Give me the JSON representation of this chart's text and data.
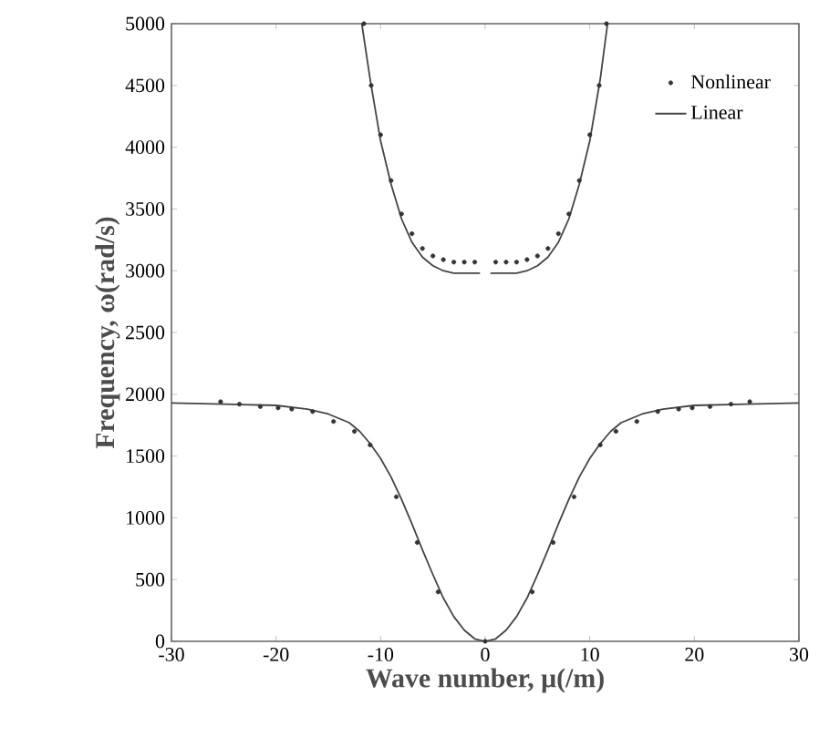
{
  "chart_data": {
    "type": "line",
    "xlabel": "Wave number, μ(/m)",
    "ylabel": "Frequency, ω(rad/s)",
    "xlim": [
      -30,
      30
    ],
    "ylim": [
      0,
      5000
    ],
    "xticks": [
      -30,
      -20,
      -10,
      0,
      10,
      20,
      30
    ],
    "yticks": [
      0,
      500,
      1000,
      1500,
      2000,
      2500,
      3000,
      3500,
      4000,
      4500,
      5000
    ],
    "grid": false,
    "legend": "top right",
    "series": [
      {
        "name": "Nonlinear",
        "type": "scatter",
        "marker": "circle",
        "color": "#333333",
        "x": [
          -25.3,
          -23.5,
          -21.5,
          -19.8,
          -18.5,
          -16.5,
          -14.5,
          -12.5,
          -11,
          -8.5,
          -6.5,
          -4.5,
          0,
          4.5,
          6.5,
          8.5,
          11,
          12.5,
          14.5,
          16.5,
          18.5,
          19.8,
          21.5,
          23.5,
          25.3,
          -11.6,
          -10.9,
          -10,
          -9,
          -8,
          -7,
          -6,
          -5,
          -4,
          -3,
          -2,
          -1,
          1,
          2,
          3,
          4,
          5,
          6,
          7,
          8,
          9,
          10,
          10.9,
          11.6
        ],
        "values": [
          1940,
          1920,
          1900,
          1890,
          1880,
          1860,
          1780,
          1700,
          1590,
          1170,
          800,
          400,
          0,
          400,
          800,
          1170,
          1590,
          1700,
          1780,
          1860,
          1880,
          1890,
          1900,
          1920,
          1940,
          5000,
          4500,
          4100,
          3730,
          3460,
          3300,
          3180,
          3120,
          3090,
          3070,
          3070,
          3070,
          3070,
          3070,
          3070,
          3090,
          3120,
          3180,
          3300,
          3460,
          3730,
          4100,
          4500,
          5000
        ]
      },
      {
        "name": "Linear",
        "type": "line",
        "marker": "none",
        "line_style": "solid",
        "color": "#444444",
        "x": [
          -30,
          -25,
          -20,
          -17,
          -15,
          -13,
          -12,
          -11,
          -10,
          -9,
          -8,
          -7,
          -6,
          -5,
          -4,
          -3,
          -2,
          -1,
          0,
          1,
          2,
          3,
          4,
          5,
          6,
          7,
          8,
          9,
          10,
          11,
          12,
          13,
          15,
          17,
          20,
          25,
          30,
          0,
          -11.8,
          -11,
          -10,
          -9,
          -8,
          -7,
          -6,
          -5,
          -4,
          -3,
          -0.5,
          0,
          0.5,
          3,
          4,
          5,
          6,
          7,
          8,
          9,
          10,
          11,
          11.7
        ],
        "values": [
          1930,
          1920,
          1910,
          1880,
          1840,
          1770,
          1700,
          1600,
          1480,
          1330,
          1150,
          950,
          740,
          540,
          350,
          200,
          90,
          20,
          0,
          20,
          90,
          200,
          350,
          540,
          740,
          950,
          1150,
          1330,
          1480,
          1600,
          1700,
          1770,
          1840,
          1880,
          1910,
          1920,
          1930,
          null,
          5000,
          4550,
          4050,
          3700,
          3420,
          3230,
          3110,
          3040,
          3000,
          2980,
          2980,
          null,
          2980,
          2980,
          3000,
          3040,
          3110,
          3230,
          3420,
          3700,
          4050,
          4550,
          5000
        ]
      }
    ]
  }
}
